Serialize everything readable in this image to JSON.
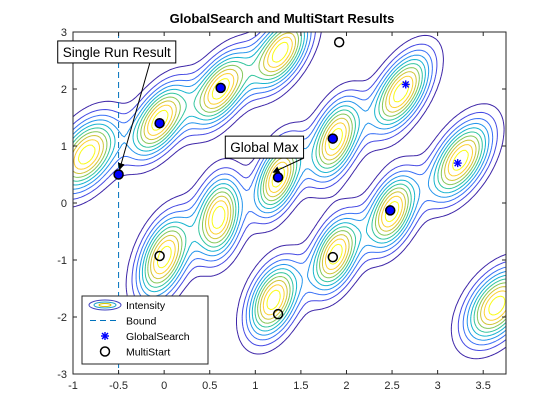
{
  "chart_data": {
    "type": "scatter",
    "title": "GlobalSearch and MultiStart Results",
    "xlabel": "",
    "ylabel": "",
    "xlim": [
      -1,
      3.75
    ],
    "ylim": [
      -3,
      3
    ],
    "x_ticks": [
      -1,
      -0.5,
      0,
      0.5,
      1,
      1.5,
      2,
      2.5,
      3,
      3.5
    ],
    "x_tick_labels": [
      "-1",
      "-0.5",
      "0",
      "0.5",
      "1",
      "1.5",
      "2",
      "2.5",
      "3",
      "3.5"
    ],
    "y_ticks": [
      -3,
      -2,
      -1,
      0,
      1,
      2,
      3
    ],
    "y_tick_labels": [
      "-3",
      "-2",
      "-1",
      "0",
      "1",
      "2",
      "3"
    ],
    "grid": false,
    "legend_position": "bottom-left",
    "legend": [
      "Intensity",
      "Bound",
      "GlobalSearch",
      "MultiStart"
    ],
    "contour_levels": 10,
    "peaks": [
      {
        "x": -0.85,
        "y": 0.85,
        "sx": 0.2,
        "sy": 0.45,
        "rot": -0.3
      },
      {
        "x": -0.05,
        "y": 1.45,
        "sx": 0.17,
        "sy": 0.45,
        "rot": -0.3
      },
      {
        "x": 0.62,
        "y": 2.0,
        "sx": 0.17,
        "sy": 0.45,
        "rot": -0.3
      },
      {
        "x": 1.28,
        "y": 2.65,
        "sx": 0.17,
        "sy": 0.45,
        "rot": -0.3
      },
      {
        "x": 1.25,
        "y": 0.45,
        "sx": 0.15,
        "sy": 0.45,
        "rot": -0.2
      },
      {
        "x": 0.6,
        "y": -0.25,
        "sx": 0.16,
        "sy": 0.48,
        "rot": -0.1
      },
      {
        "x": 1.88,
        "y": 1.12,
        "sx": 0.16,
        "sy": 0.48,
        "rot": -0.2
      },
      {
        "x": 2.6,
        "y": 1.95,
        "sx": 0.17,
        "sy": 0.48,
        "rot": -0.3
      },
      {
        "x": 3.25,
        "y": 0.75,
        "sx": 0.18,
        "sy": 0.48,
        "rot": -0.3
      },
      {
        "x": 2.5,
        "y": -0.15,
        "sx": 0.16,
        "sy": 0.45,
        "rot": -0.2
      },
      {
        "x": 1.88,
        "y": -0.9,
        "sx": 0.16,
        "sy": 0.45,
        "rot": -0.2
      },
      {
        "x": 1.2,
        "y": -1.7,
        "sx": 0.17,
        "sy": 0.45,
        "rot": -0.2
      },
      {
        "x": 0.0,
        "y": -0.95,
        "sx": 0.17,
        "sy": 0.5,
        "rot": -0.2
      },
      {
        "x": 3.65,
        "y": -1.8,
        "sx": 0.2,
        "sy": 0.45,
        "rot": -0.3
      }
    ],
    "bound": {
      "x": -0.5
    },
    "series": [
      {
        "name": "GlobalSearch",
        "color": "#0000ff",
        "points": [
          [
            2.65,
            2.08
          ],
          [
            3.22,
            0.7
          ]
        ]
      },
      {
        "name": "MultiStart",
        "color": "#000000",
        "points": [
          [
            -0.5,
            0.5
          ],
          [
            -0.05,
            1.4
          ],
          [
            0.62,
            2.02
          ],
          [
            1.25,
            0.45
          ],
          [
            1.85,
            1.13
          ],
          [
            2.48,
            -0.13
          ],
          [
            1.92,
            2.82
          ],
          [
            -0.05,
            -0.93
          ],
          [
            1.85,
            -0.95
          ],
          [
            1.25,
            -1.95
          ]
        ]
      }
    ],
    "annotations": [
      {
        "text": "Single Run Result",
        "target": [
          -0.5,
          0.5
        ],
        "label_pos": [
          -0.52,
          2.65
        ]
      },
      {
        "text": "Global Max",
        "target": [
          1.25,
          0.45
        ],
        "label_pos": [
          1.1,
          0.98
        ]
      }
    ]
  }
}
